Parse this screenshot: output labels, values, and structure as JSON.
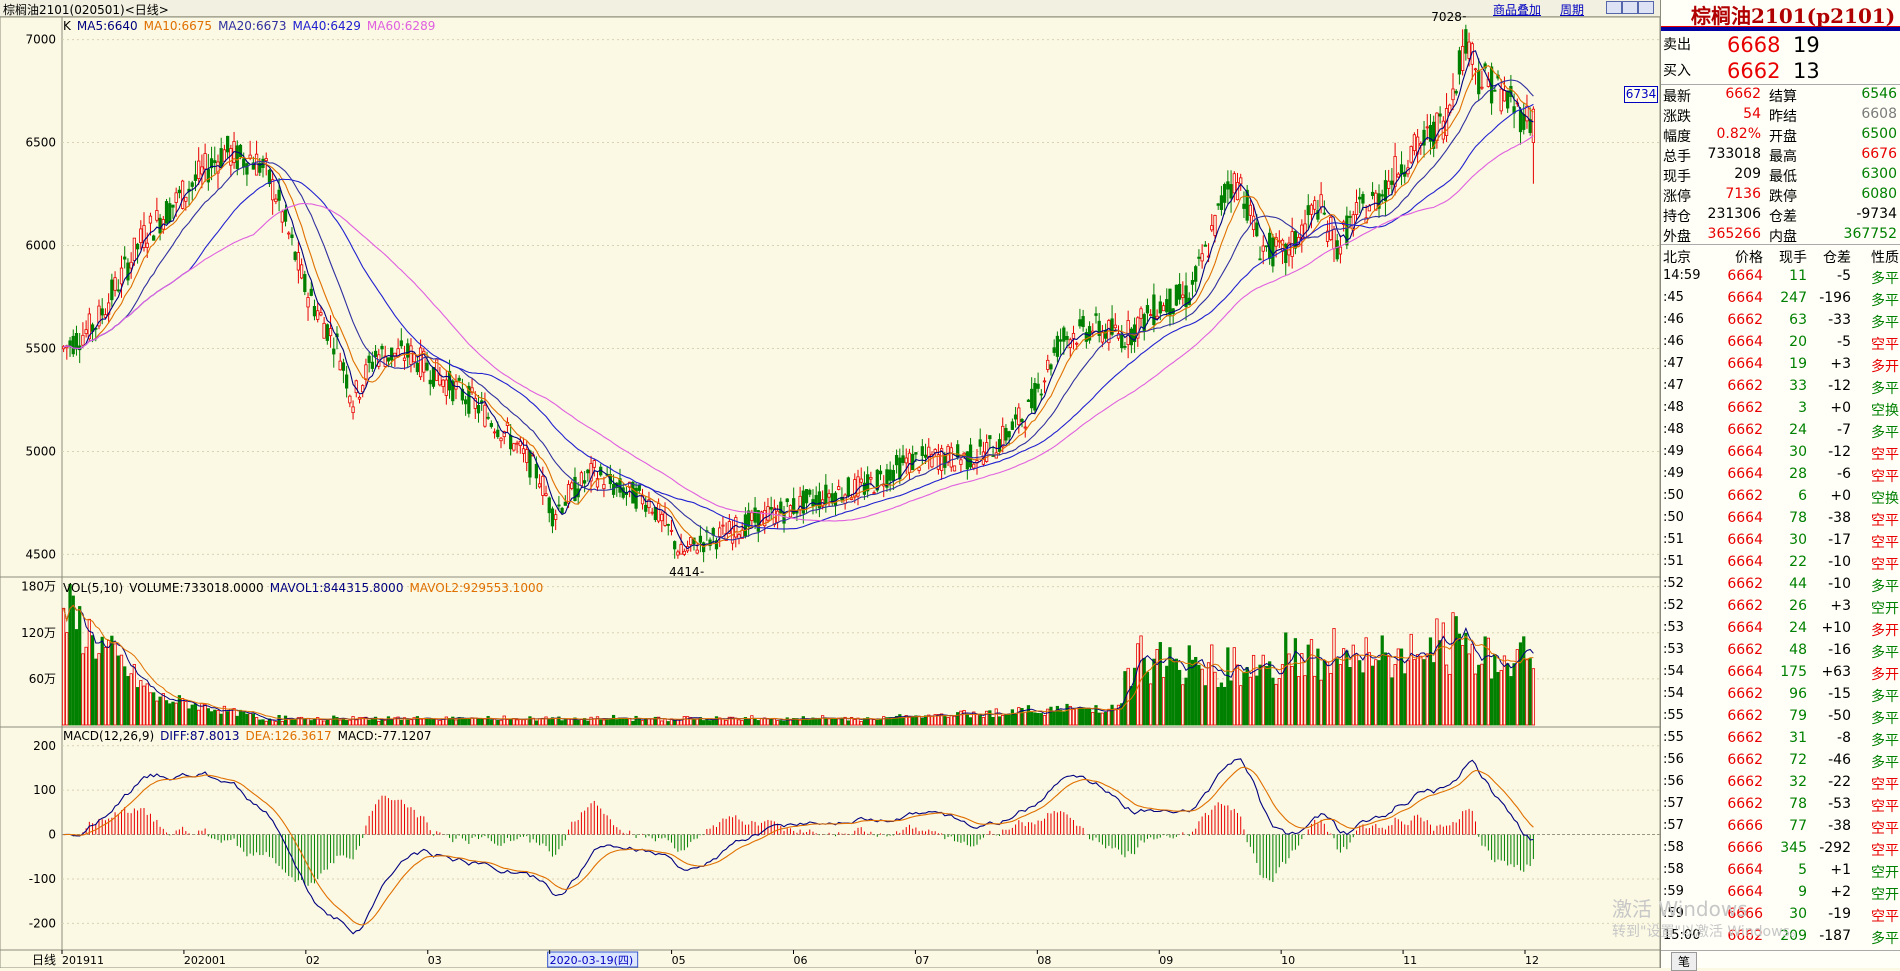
{
  "topbar": {
    "instrument": "棕榈油2101(020501)<日线>",
    "link_overlay": "商品叠加",
    "link_period": "周期"
  },
  "indicators": {
    "ma": [
      {
        "label": "K",
        "color": "#000000"
      },
      {
        "label": "MA5:6640",
        "color": "#000080"
      },
      {
        "label": "MA10:6675",
        "color": "#e07000"
      },
      {
        "label": "MA20:6673",
        "color": "#3030a0"
      },
      {
        "label": "MA40:6429",
        "color": "#2020d0"
      },
      {
        "label": "MA60:6289",
        "color": "#e060e0"
      }
    ],
    "vol": [
      {
        "label": "VOL(5,10)",
        "color": "#000000"
      },
      {
        "label": "VOLUME:733018.0000",
        "color": "#000000"
      },
      {
        "label": "MAVOL1:844315.8000",
        "color": "#000080"
      },
      {
        "label": "MAVOL2:929553.1000",
        "color": "#e07000"
      }
    ],
    "macd": [
      {
        "label": "MACD(12,26,9)",
        "color": "#000000"
      },
      {
        "label": "DIFF:87.8013",
        "color": "#000080"
      },
      {
        "label": "DEA:126.3617",
        "color": "#e07000"
      },
      {
        "label": "MACD:-77.1207",
        "color": "#000000"
      }
    ]
  },
  "side_price_tag": "6734",
  "chart_data": {
    "type": "candlestick",
    "title": "棕榈油2101(020501)<日线>",
    "price_axis": {
      "ticks": [
        4500,
        5000,
        5500,
        6000,
        6500,
        7000
      ],
      "range": [
        4400,
        7100
      ]
    },
    "volume_axis": {
      "ticks": [
        "60万",
        "120万",
        "180万"
      ],
      "tick_values": [
        600000,
        1200000,
        1800000
      ],
      "range": [
        0,
        1900000
      ]
    },
    "macd_axis": {
      "ticks": [
        -200,
        -100,
        0,
        100,
        200
      ],
      "range": [
        -260,
        240
      ]
    },
    "x_axis": {
      "label": "日线",
      "ticks": [
        "201911",
        "202001",
        "02",
        "03",
        "2020-03-19(四)",
        "05",
        "06",
        "07",
        "08",
        "09",
        "10",
        "11",
        "12"
      ]
    },
    "annotations": [
      {
        "text": "7028",
        "value": 7028
      },
      {
        "text": "4414",
        "value": 4414
      }
    ],
    "anchors": [
      [
        0,
        5500
      ],
      [
        10,
        5620
      ],
      [
        25,
        6050
      ],
      [
        40,
        6300
      ],
      [
        50,
        6460
      ],
      [
        55,
        6420
      ],
      [
        58,
        6430
      ],
      [
        62,
        6380
      ],
      [
        66,
        6250
      ],
      [
        70,
        6050
      ],
      [
        75,
        5800
      ],
      [
        80,
        5650
      ],
      [
        85,
        5520
      ],
      [
        90,
        5250
      ],
      [
        97,
        5470
      ],
      [
        108,
        5470
      ],
      [
        118,
        5350
      ],
      [
        128,
        5230
      ],
      [
        138,
        5080
      ],
      [
        148,
        4880
      ],
      [
        152,
        4700
      ],
      [
        158,
        4800
      ],
      [
        165,
        4900
      ],
      [
        172,
        4820
      ],
      [
        182,
        4760
      ],
      [
        188,
        4620
      ],
      [
        192,
        4500
      ],
      [
        198,
        4560
      ],
      [
        206,
        4600
      ],
      [
        214,
        4660
      ],
      [
        222,
        4700
      ],
      [
        230,
        4750
      ],
      [
        240,
        4800
      ],
      [
        250,
        4830
      ],
      [
        262,
        4950
      ],
      [
        272,
        4970
      ],
      [
        282,
        4970
      ],
      [
        290,
        5030
      ],
      [
        300,
        5200
      ],
      [
        310,
        5550
      ],
      [
        320,
        5600
      ],
      [
        330,
        5560
      ],
      [
        340,
        5700
      ],
      [
        350,
        5760
      ],
      [
        356,
        6000
      ],
      [
        362,
        6300
      ],
      [
        366,
        6300
      ],
      [
        372,
        6000
      ],
      [
        380,
        5950
      ],
      [
        390,
        6200
      ],
      [
        396,
        6000
      ],
      [
        402,
        6150
      ],
      [
        408,
        6220
      ],
      [
        416,
        6400
      ],
      [
        424,
        6520
      ],
      [
        430,
        6620
      ],
      [
        434,
        6900
      ],
      [
        437,
        7000
      ],
      [
        440,
        6820
      ],
      [
        446,
        6760
      ],
      [
        452,
        6650
      ],
      [
        457,
        6600
      ]
    ],
    "ma_series": {
      "periods": [
        5,
        10,
        20,
        40,
        60
      ],
      "colors": [
        "#000080",
        "#e07000",
        "#3030a0",
        "#2020d0",
        "#e060e0"
      ],
      "last": [
        6640,
        6675,
        6673,
        6429,
        6289
      ]
    },
    "volume_last": 733018,
    "macd_last": {
      "diff": 87.8013,
      "dea": 126.3617,
      "macd": -77.1207
    },
    "bars": 458,
    "seed": 7
  },
  "quote": {
    "title": "棕榈油2101(p2101)",
    "sell": {
      "label": "卖出",
      "price": "6668",
      "qty": "19"
    },
    "buy": {
      "label": "买入",
      "price": "6662",
      "qty": "13"
    },
    "stats": [
      {
        "l1": "最新",
        "v1": "6662",
        "c1": "red",
        "l2": "结算",
        "v2": "6546",
        "c2": "grn"
      },
      {
        "l1": "涨跌",
        "v1": "54",
        "c1": "red",
        "l2": "昨结",
        "v2": "6608",
        "c2": "gray"
      },
      {
        "l1": "幅度",
        "v1": "0.82%",
        "c1": "red",
        "l2": "开盘",
        "v2": "6500",
        "c2": "grn"
      },
      {
        "l1": "总手",
        "v1": "733018",
        "c1": "k",
        "l2": "最高",
        "v2": "6676",
        "c2": "red"
      },
      {
        "l1": "现手",
        "v1": "209",
        "c1": "k",
        "l2": "最低",
        "v2": "6300",
        "c2": "grn"
      },
      {
        "l1": "涨停",
        "v1": "7136",
        "c1": "red",
        "l2": "跌停",
        "v2": "6080",
        "c2": "grn"
      },
      {
        "l1": "持仓",
        "v1": "231306",
        "c1": "k",
        "l2": "仓差",
        "v2": "-9734",
        "c2": "k"
      },
      {
        "l1": "外盘",
        "v1": "365266",
        "c1": "red",
        "l2": "内盘",
        "v2": "367752",
        "c2": "grn"
      }
    ],
    "ticks_header": [
      "北京",
      "价格",
      "现手",
      "仓差",
      "性质"
    ],
    "ticks": [
      [
        "14:59",
        "6664",
        "11",
        "-5",
        "多平"
      ],
      [
        ":45",
        "6664",
        "247",
        "-196",
        "多平"
      ],
      [
        ":46",
        "6662",
        "63",
        "-33",
        "多平"
      ],
      [
        ":46",
        "6664",
        "20",
        "-5",
        "空平"
      ],
      [
        ":47",
        "6664",
        "19",
        "+3",
        "多开"
      ],
      [
        ":47",
        "6662",
        "33",
        "-12",
        "多平"
      ],
      [
        ":48",
        "6662",
        "3",
        "+0",
        "空换"
      ],
      [
        ":48",
        "6662",
        "24",
        "-7",
        "多平"
      ],
      [
        ":49",
        "6664",
        "30",
        "-12",
        "空平"
      ],
      [
        ":49",
        "6664",
        "28",
        "-6",
        "空平"
      ],
      [
        ":50",
        "6662",
        "6",
        "+0",
        "空换"
      ],
      [
        ":50",
        "6664",
        "78",
        "-38",
        "空平"
      ],
      [
        ":51",
        "6664",
        "30",
        "-17",
        "空平"
      ],
      [
        ":51",
        "6664",
        "22",
        "-10",
        "空平"
      ],
      [
        ":52",
        "6662",
        "44",
        "-10",
        "多平"
      ],
      [
        ":52",
        "6662",
        "26",
        "+3",
        "空开"
      ],
      [
        ":53",
        "6664",
        "24",
        "+10",
        "多开"
      ],
      [
        ":53",
        "6662",
        "48",
        "-16",
        "多平"
      ],
      [
        ":54",
        "6664",
        "175",
        "+63",
        "多开"
      ],
      [
        ":54",
        "6662",
        "96",
        "-15",
        "多平"
      ],
      [
        ":55",
        "6662",
        "79",
        "-50",
        "多平"
      ],
      [
        ":55",
        "6662",
        "31",
        "-8",
        "多平"
      ],
      [
        ":56",
        "6662",
        "72",
        "-46",
        "多平"
      ],
      [
        ":56",
        "6662",
        "32",
        "-22",
        "空平"
      ],
      [
        ":57",
        "6662",
        "78",
        "-53",
        "空平"
      ],
      [
        ":57",
        "6666",
        "77",
        "-38",
        "空平"
      ],
      [
        ":58",
        "6666",
        "345",
        "-292",
        "空平"
      ],
      [
        ":58",
        "6664",
        "5",
        "+1",
        "空开"
      ],
      [
        ":59",
        "6664",
        "9",
        "+2",
        "空开"
      ],
      [
        ":59",
        "6666",
        "30",
        "-19",
        "空平"
      ],
      [
        "15:00",
        "6662",
        "209",
        "-187",
        "多平"
      ]
    ],
    "footer_tab": "笔"
  },
  "watermark": {
    "line1": "激活 Windows",
    "line2": "转到\"设置\"以激活 Windows。"
  }
}
